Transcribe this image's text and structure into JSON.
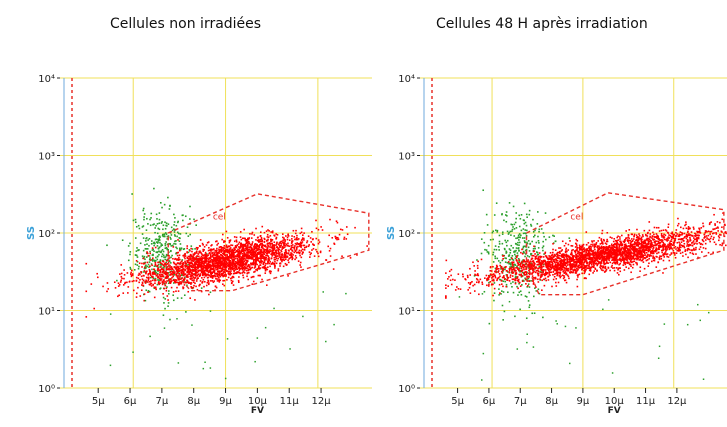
{
  "panels": [
    {
      "title": "Cellules non irradiées",
      "gate_label": "cel",
      "ylabel": "SS",
      "xlabel": "FV"
    },
    {
      "title": "Cellules 48 H après irradiation",
      "gate_label": "cel",
      "ylabel": "SS",
      "xlabel": "FV"
    }
  ],
  "colors": {
    "grid": "#f0e05a",
    "gate": "#e8302a",
    "gated_events": "#ff0000",
    "ungated_events": "#2ca02c",
    "axis_text": "#222222",
    "axis_label": "#3aa0d8"
  },
  "chart_data": [
    {
      "type": "scatter",
      "title": "Cellules non irradiées",
      "xlabel": "FV",
      "ylabel": "SS",
      "y_scale": "log",
      "ylim": [
        1,
        10000
      ],
      "y_ticks": [
        "10⁰",
        "10¹",
        "10²",
        "10³",
        "10⁴"
      ],
      "x_ticks": [
        "5µ",
        "6µ",
        "7µ",
        "8µ",
        "9µ",
        "10µ",
        "11µ",
        "12µ"
      ],
      "x_tick_values": [
        5,
        6,
        7,
        8,
        9,
        10,
        11,
        12
      ],
      "grid": true,
      "gate": {
        "label": "cel",
        "polygon": [
          [
            7.2,
            100
          ],
          [
            10,
            320
          ],
          [
            13.5,
            180
          ],
          [
            13.5,
            60
          ],
          [
            9.2,
            18
          ],
          [
            7.9,
            18
          ],
          [
            7.2,
            40
          ]
        ]
      },
      "series": [
        {
          "name": "cel",
          "color": "#ff0000",
          "population": {
            "x_center": 9.0,
            "x_spread": 1.4,
            "logy_center": 1.65,
            "logy_spread": 0.12,
            "slope": 0.08,
            "count": 2600
          }
        },
        {
          "color": "#2ca02c",
          "population": {
            "x_center": 7.0,
            "x_spread": 0.5,
            "logy_center": 1.75,
            "logy_spread": 0.28,
            "slope": 0.0,
            "count": 420
          }
        }
      ]
    },
    {
      "type": "scatter",
      "title": "Cellules 48 H après irradiation",
      "xlabel": "FV",
      "ylabel": "SS",
      "y_scale": "log",
      "ylim": [
        1,
        10000
      ],
      "y_ticks": [
        "10⁰",
        "10¹",
        "10²",
        "10³",
        "10⁴"
      ],
      "x_ticks": [
        "5µ",
        "6µ",
        "7µ",
        "8µ",
        "9µ",
        "10µ",
        "11µ",
        "12µ"
      ],
      "x_tick_values": [
        5,
        6,
        7,
        8,
        9,
        10,
        11,
        12
      ],
      "grid": true,
      "gate": {
        "label": "cel",
        "polygon": [
          [
            7.2,
            100
          ],
          [
            9.8,
            330
          ],
          [
            13.5,
            200
          ],
          [
            13.5,
            60
          ],
          [
            9.0,
            16
          ],
          [
            7.6,
            16
          ],
          [
            7.2,
            40
          ]
        ]
      },
      "series": [
        {
          "name": "cel",
          "color": "#ff0000",
          "population": {
            "x_center": 9.6,
            "x_spread": 1.9,
            "logy_center": 1.72,
            "logy_spread": 0.1,
            "slope": 0.07,
            "count": 2800
          }
        },
        {
          "color": "#2ca02c",
          "population": {
            "x_center": 6.9,
            "x_spread": 0.5,
            "logy_center": 1.7,
            "logy_spread": 0.3,
            "slope": 0.0,
            "count": 380
          }
        }
      ]
    }
  ]
}
